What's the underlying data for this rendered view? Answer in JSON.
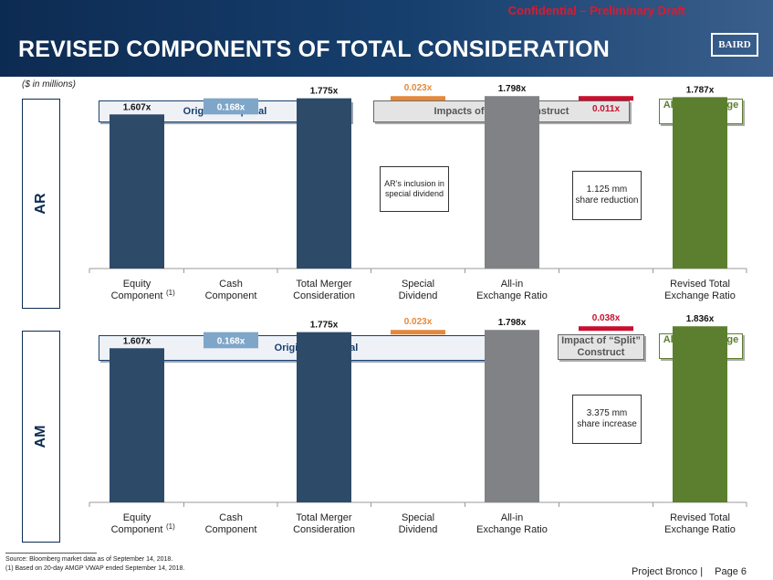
{
  "header": {
    "confidential": "Confidential – Preliminary Draft",
    "title": "REVISED COMPONENTS OF TOTAL CONSIDERATION",
    "logo": "BAIRD"
  },
  "units_note": "($ in millions)",
  "colors": {
    "navy": "#2e4a69",
    "light_blue": "#7ea6c8",
    "orange": "#e3893d",
    "gray": "#808285",
    "red": "#c8102e",
    "green": "#5b7f2e"
  },
  "ar_panel": {
    "side_label": "AR",
    "header_original": "Original Proposal",
    "header_split": "Impacts of “Split” Construct",
    "header_allin": "All-In Exchange Ratio",
    "note_special": "AR’s inclusion in special dividend",
    "note_share": "1.125 mm share reduction"
  },
  "am_panel": {
    "side_label": "AM",
    "header_original": "Original Proposal",
    "header_split": "Impact of “Split” Construct",
    "header_allin": "All-In Exchange Ratio",
    "note_share": "3.375 mm share increase"
  },
  "chart_data": [
    {
      "type": "bar",
      "subtype": "waterfall",
      "title": "AR",
      "categories": [
        "Equity Component",
        "Cash Component",
        "Total Merger Consideration",
        "Special Dividend",
        "All-in Exchange Ratio",
        "",
        "Revised Total Exchange Ratio"
      ],
      "category_lines": [
        [
          "Equity",
          "Component"
        ],
        [
          "Cash",
          "Component"
        ],
        [
          "Total Merger",
          "Consideration"
        ],
        [
          "Special",
          "Dividend"
        ],
        [
          "All-in",
          "Exchange Ratio"
        ],
        [
          "",
          ""
        ],
        [
          "Revised Total",
          "Exchange Ratio"
        ]
      ],
      "footnote_marker": "(1)",
      "bars": [
        {
          "kind": "total",
          "start": 0,
          "end": 1.607,
          "label": "1.607x",
          "color": "navy"
        },
        {
          "kind": "delta",
          "start": 1.607,
          "end": 1.775,
          "label": "0.168x",
          "color": "light_blue"
        },
        {
          "kind": "total",
          "start": 0,
          "end": 1.775,
          "label": "1.775x",
          "color": "navy"
        },
        {
          "kind": "delta",
          "start": 1.775,
          "end": 1.798,
          "label": "0.023x",
          "color": "orange"
        },
        {
          "kind": "total",
          "start": 0,
          "end": 1.798,
          "label": "1.798x",
          "color": "gray"
        },
        {
          "kind": "delta",
          "start": 1.798,
          "end": 1.787,
          "label": "0.011x",
          "color": "red"
        },
        {
          "kind": "total",
          "start": 0,
          "end": 1.787,
          "label": "1.787x",
          "color": "green"
        }
      ],
      "ylim": [
        0,
        1.9
      ]
    },
    {
      "type": "bar",
      "subtype": "waterfall",
      "title": "AM",
      "categories": [
        "Equity Component",
        "Cash Component",
        "Total Merger Consideration",
        "Special Dividend",
        "All-in Exchange Ratio",
        "",
        "Revised Total Exchange Ratio"
      ],
      "category_lines": [
        [
          "Equity",
          "Component"
        ],
        [
          "Cash",
          "Component"
        ],
        [
          "Total Merger",
          "Consideration"
        ],
        [
          "Special",
          "Dividend"
        ],
        [
          "All-in",
          "Exchange Ratio"
        ],
        [
          "",
          ""
        ],
        [
          "Revised Total",
          "Exchange Ratio"
        ]
      ],
      "footnote_marker": "(1)",
      "bars": [
        {
          "kind": "total",
          "start": 0,
          "end": 1.607,
          "label": "1.607x",
          "color": "navy"
        },
        {
          "kind": "delta",
          "start": 1.607,
          "end": 1.775,
          "label": "0.168x",
          "color": "light_blue"
        },
        {
          "kind": "total",
          "start": 0,
          "end": 1.775,
          "label": "1.775x",
          "color": "navy"
        },
        {
          "kind": "delta",
          "start": 1.775,
          "end": 1.798,
          "label": "0.023x",
          "color": "orange"
        },
        {
          "kind": "total",
          "start": 0,
          "end": 1.798,
          "label": "1.798x",
          "color": "gray"
        },
        {
          "kind": "delta",
          "start": 1.798,
          "end": 1.836,
          "label": "0.038x",
          "color": "red"
        },
        {
          "kind": "total",
          "start": 0,
          "end": 1.836,
          "label": "1.836x",
          "color": "green"
        }
      ],
      "ylim": [
        0,
        1.9
      ]
    }
  ],
  "footer": {
    "source": "Source: Bloomberg market data as of September 14, 2018.",
    "note": "(1)     Based on 20-day AMGP VWAP ended September 14, 2018.",
    "project": "Project Bronco   |",
    "page": "Page 6"
  }
}
